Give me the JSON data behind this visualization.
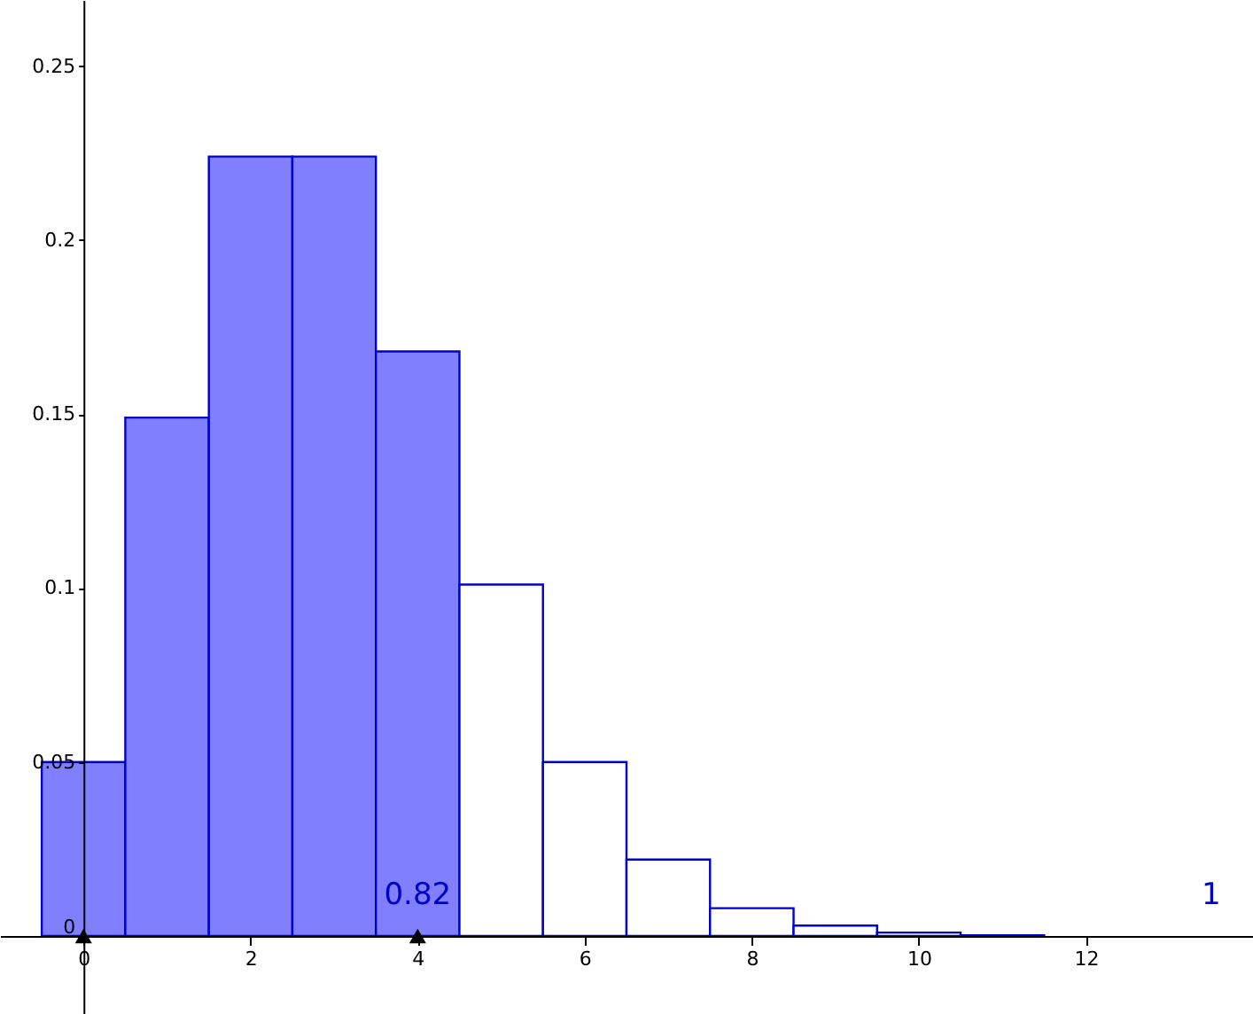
{
  "chart_data": {
    "type": "histogram",
    "bins": [
      -0.5,
      0.5,
      1.5,
      2.5,
      3.5,
      4.5,
      5.5,
      6.5,
      7.5,
      8.5,
      9.5,
      10.5,
      11.5
    ],
    "values": [
      0.05,
      0.149,
      0.224,
      0.224,
      0.168,
      0.101,
      0.05,
      0.022,
      0.008,
      0.003,
      0.001,
      0.0002
    ],
    "colors": [
      "#8080ff",
      "#8080ff",
      "#8080ff",
      "#8080ff",
      "#8080ff",
      "#ffffff",
      "#ffffff",
      "#ffffff",
      "#ffffff",
      "#ffffff",
      "#ffffff",
      "#ffffff"
    ],
    "series": [
      {
        "type": "scatter",
        "marker": "triangle",
        "color": "#000000",
        "x": [
          0,
          4
        ],
        "values": [
          0,
          0
        ]
      }
    ],
    "annotations": [
      "0.82",
      "1"
    ],
    "xlim": [
      -1,
      14
    ],
    "ylim": [
      -0.0224,
      0.269
    ],
    "xticks": [
      0,
      2,
      4,
      6,
      8,
      10,
      12
    ],
    "yticks": [
      0,
      0.05,
      0.1,
      0.15,
      0.2,
      0.25
    ],
    "grid": false
  }
}
